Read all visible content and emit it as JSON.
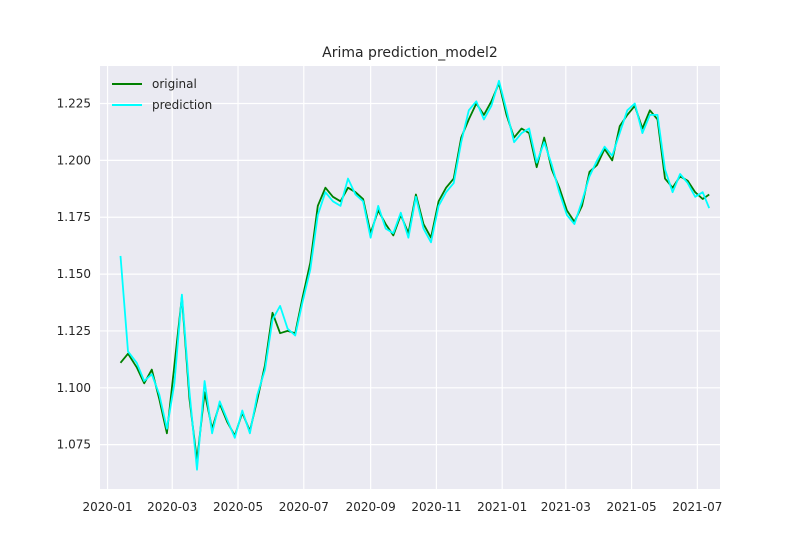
{
  "chart_data": {
    "type": "line",
    "title": "Arima prediction_model2",
    "xlabel": "",
    "ylabel": "",
    "x_ticks": [
      "2020-01",
      "2020-03",
      "2020-05",
      "2020-07",
      "2020-09",
      "2020-11",
      "2021-01",
      "2021-03",
      "2021-05",
      "2021-07"
    ],
    "y_ticks": [
      "1.075",
      "1.100",
      "1.125",
      "1.150",
      "1.175",
      "1.200",
      "1.225"
    ],
    "xlim": [
      "2019-12-25",
      "2021-07-22"
    ],
    "ylim": [
      1.0555,
      1.2415
    ],
    "grid": true,
    "legend": "top-left",
    "x": [
      "2020-01-13",
      "2020-01-20",
      "2020-01-28",
      "2020-02-04",
      "2020-02-11",
      "2020-02-18",
      "2020-02-25",
      "2020-03-03",
      "2020-03-10",
      "2020-03-17",
      "2020-03-24",
      "2020-03-31",
      "2020-04-07",
      "2020-04-14",
      "2020-04-21",
      "2020-04-28",
      "2020-05-05",
      "2020-05-12",
      "2020-05-19",
      "2020-05-26",
      "2020-06-02",
      "2020-06-09",
      "2020-06-16",
      "2020-06-23",
      "2020-06-30",
      "2020-07-07",
      "2020-07-14",
      "2020-07-21",
      "2020-07-28",
      "2020-08-04",
      "2020-08-11",
      "2020-08-18",
      "2020-08-25",
      "2020-09-01",
      "2020-09-08",
      "2020-09-15",
      "2020-09-22",
      "2020-09-29",
      "2020-10-06",
      "2020-10-13",
      "2020-10-20",
      "2020-10-27",
      "2020-11-03",
      "2020-11-10",
      "2020-11-17",
      "2020-11-24",
      "2020-12-01",
      "2020-12-08",
      "2020-12-15",
      "2020-12-22",
      "2020-12-29",
      "2021-01-05",
      "2021-01-12",
      "2021-01-19",
      "2021-01-26",
      "2021-02-02",
      "2021-02-09",
      "2021-02-16",
      "2021-02-23",
      "2021-03-02",
      "2021-03-09",
      "2021-03-16",
      "2021-03-23",
      "2021-03-30",
      "2021-04-06",
      "2021-04-13",
      "2021-04-20",
      "2021-04-27",
      "2021-05-04",
      "2021-05-11",
      "2021-05-18",
      "2021-05-25",
      "2021-06-01",
      "2021-06-08",
      "2021-06-15",
      "2021-06-22",
      "2021-06-29",
      "2021-07-06",
      "2021-07-12"
    ],
    "series": [
      {
        "name": "original",
        "color": "#008000",
        "values": [
          1.111,
          1.115,
          1.109,
          1.102,
          1.108,
          1.095,
          1.08,
          1.11,
          1.14,
          1.095,
          1.068,
          1.098,
          1.082,
          1.093,
          1.085,
          1.079,
          1.089,
          1.081,
          1.095,
          1.11,
          1.133,
          1.124,
          1.125,
          1.124,
          1.14,
          1.155,
          1.18,
          1.188,
          1.184,
          1.182,
          1.188,
          1.186,
          1.183,
          1.168,
          1.178,
          1.172,
          1.167,
          1.176,
          1.168,
          1.185,
          1.172,
          1.166,
          1.182,
          1.188,
          1.192,
          1.21,
          1.218,
          1.225,
          1.22,
          1.226,
          1.234,
          1.22,
          1.21,
          1.214,
          1.212,
          1.197,
          1.21,
          1.196,
          1.188,
          1.178,
          1.173,
          1.18,
          1.195,
          1.198,
          1.205,
          1.2,
          1.215,
          1.22,
          1.224,
          1.214,
          1.222,
          1.218,
          1.192,
          1.188,
          1.193,
          1.191,
          1.186,
          1.183,
          1.185
        ]
      },
      {
        "name": "prediction",
        "color": "#00ffff",
        "values": [
          1.158,
          1.116,
          1.111,
          1.103,
          1.106,
          1.097,
          1.082,
          1.102,
          1.141,
          1.098,
          1.064,
          1.103,
          1.08,
          1.094,
          1.086,
          1.078,
          1.09,
          1.08,
          1.097,
          1.108,
          1.13,
          1.136,
          1.126,
          1.123,
          1.138,
          1.152,
          1.176,
          1.186,
          1.182,
          1.18,
          1.192,
          1.185,
          1.182,
          1.166,
          1.18,
          1.17,
          1.168,
          1.177,
          1.166,
          1.184,
          1.17,
          1.164,
          1.18,
          1.186,
          1.19,
          1.208,
          1.222,
          1.226,
          1.218,
          1.224,
          1.235,
          1.222,
          1.208,
          1.212,
          1.214,
          1.199,
          1.208,
          1.198,
          1.186,
          1.176,
          1.172,
          1.182,
          1.193,
          1.2,
          1.206,
          1.202,
          1.212,
          1.222,
          1.225,
          1.212,
          1.22,
          1.22,
          1.196,
          1.186,
          1.194,
          1.19,
          1.184,
          1.186,
          1.179
        ]
      }
    ]
  }
}
